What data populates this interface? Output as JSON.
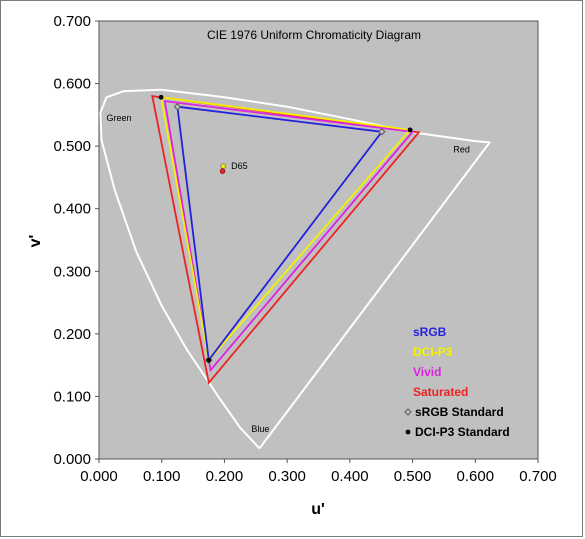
{
  "chart_data": {
    "type": "line",
    "title": "CIE 1976 Uniform Chromaticity Diagram",
    "xlabel": "u'",
    "ylabel": "v'",
    "xlim": [
      0,
      0.7
    ],
    "ylim": [
      0,
      0.7
    ],
    "xticks": [
      "0.000",
      "0.100",
      "0.200",
      "0.300",
      "0.400",
      "0.500",
      "0.600",
      "0.700"
    ],
    "yticks": [
      "0.000",
      "0.100",
      "0.200",
      "0.300",
      "0.400",
      "0.500",
      "0.600",
      "0.700"
    ],
    "plot_background": "#c0c0c0",
    "grid": false,
    "legend_position": "bottom-right",
    "spectral_locus": {
      "color": "#ffffff",
      "points": [
        [
          0.256,
          0.017
        ],
        [
          0.225,
          0.05
        ],
        [
          0.19,
          0.1
        ],
        [
          0.14,
          0.175
        ],
        [
          0.1,
          0.245
        ],
        [
          0.06,
          0.33
        ],
        [
          0.025,
          0.43
        ],
        [
          0.004,
          0.51
        ],
        [
          0.002,
          0.553
        ],
        [
          0.012,
          0.578
        ],
        [
          0.04,
          0.588
        ],
        [
          0.1,
          0.59
        ],
        [
          0.2,
          0.578
        ],
        [
          0.3,
          0.563
        ],
        [
          0.4,
          0.543
        ],
        [
          0.5,
          0.522
        ],
        [
          0.6,
          0.508
        ],
        [
          0.623,
          0.506
        ],
        [
          0.256,
          0.017
        ]
      ]
    },
    "region_labels": [
      {
        "text": "Green",
        "u": 0.012,
        "v": 0.54
      },
      {
        "text": "Red",
        "u": 0.565,
        "v": 0.49
      },
      {
        "text": "Blue",
        "u": 0.243,
        "v": 0.043
      }
    ],
    "series": [
      {
        "name": "sRGB",
        "color": "#2222dd",
        "points": [
          [
            0.125,
            0.563
          ],
          [
            0.451,
            0.523
          ],
          [
            0.175,
            0.158
          ]
        ]
      },
      {
        "name": "DCI-P3",
        "color": "#f2f200",
        "points": [
          [
            0.099,
            0.578
          ],
          [
            0.496,
            0.526
          ],
          [
            0.175,
            0.158
          ]
        ]
      },
      {
        "name": "Vivid",
        "color": "#e020e0",
        "points": [
          [
            0.105,
            0.572
          ],
          [
            0.5,
            0.523
          ],
          [
            0.178,
            0.142
          ]
        ]
      },
      {
        "name": "Saturated",
        "color": "#ee2222",
        "points": [
          [
            0.085,
            0.58
          ],
          [
            0.51,
            0.522
          ],
          [
            0.175,
            0.122
          ]
        ]
      }
    ],
    "standard_points": [
      {
        "name": "sRGB Standard",
        "color": "#808080",
        "points": [
          [
            0.125,
            0.563
          ],
          [
            0.451,
            0.523
          ],
          [
            0.175,
            0.158
          ]
        ]
      },
      {
        "name": "DCI-P3 Standard",
        "color": "#000000",
        "points": [
          [
            0.099,
            0.578
          ],
          [
            0.496,
            0.526
          ],
          [
            0.175,
            0.158
          ]
        ]
      }
    ],
    "white_point": {
      "label": "D65",
      "markers": [
        {
          "u": 0.198,
          "v": 0.468,
          "color": "#f2f200"
        },
        {
          "u": 0.197,
          "v": 0.46,
          "color": "#ee2222"
        }
      ]
    }
  }
}
